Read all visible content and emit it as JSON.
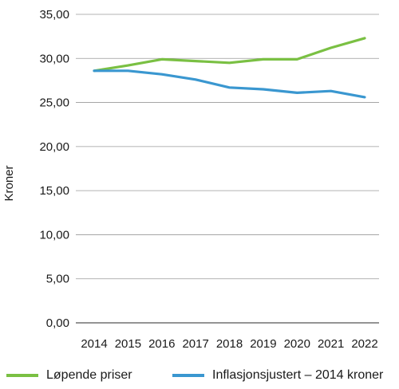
{
  "chart_data": {
    "type": "line",
    "title": "",
    "xlabel": "",
    "ylabel": "Kroner",
    "categories": [
      "2014",
      "2015",
      "2016",
      "2017",
      "2018",
      "2019",
      "2020",
      "2021",
      "2022"
    ],
    "ylim": [
      0,
      35
    ],
    "yticks": [
      0,
      5,
      10,
      15,
      20,
      25,
      30,
      35
    ],
    "ytick_labels": [
      "0,00",
      "5,00",
      "10,00",
      "15,00",
      "20,00",
      "25,00",
      "30,00",
      "35,00"
    ],
    "grid": true,
    "legend_position": "bottom",
    "series": [
      {
        "name": "Løpende priser",
        "color": "#7ac043",
        "values": [
          28.6,
          29.2,
          29.9,
          29.7,
          29.5,
          29.9,
          29.9,
          31.2,
          32.3
        ]
      },
      {
        "name": "Inflasjonsjustert – 2014 kroner",
        "color": "#3a97d0",
        "values": [
          28.6,
          28.6,
          28.2,
          27.6,
          26.7,
          26.5,
          26.1,
          26.3,
          25.6
        ]
      }
    ]
  }
}
